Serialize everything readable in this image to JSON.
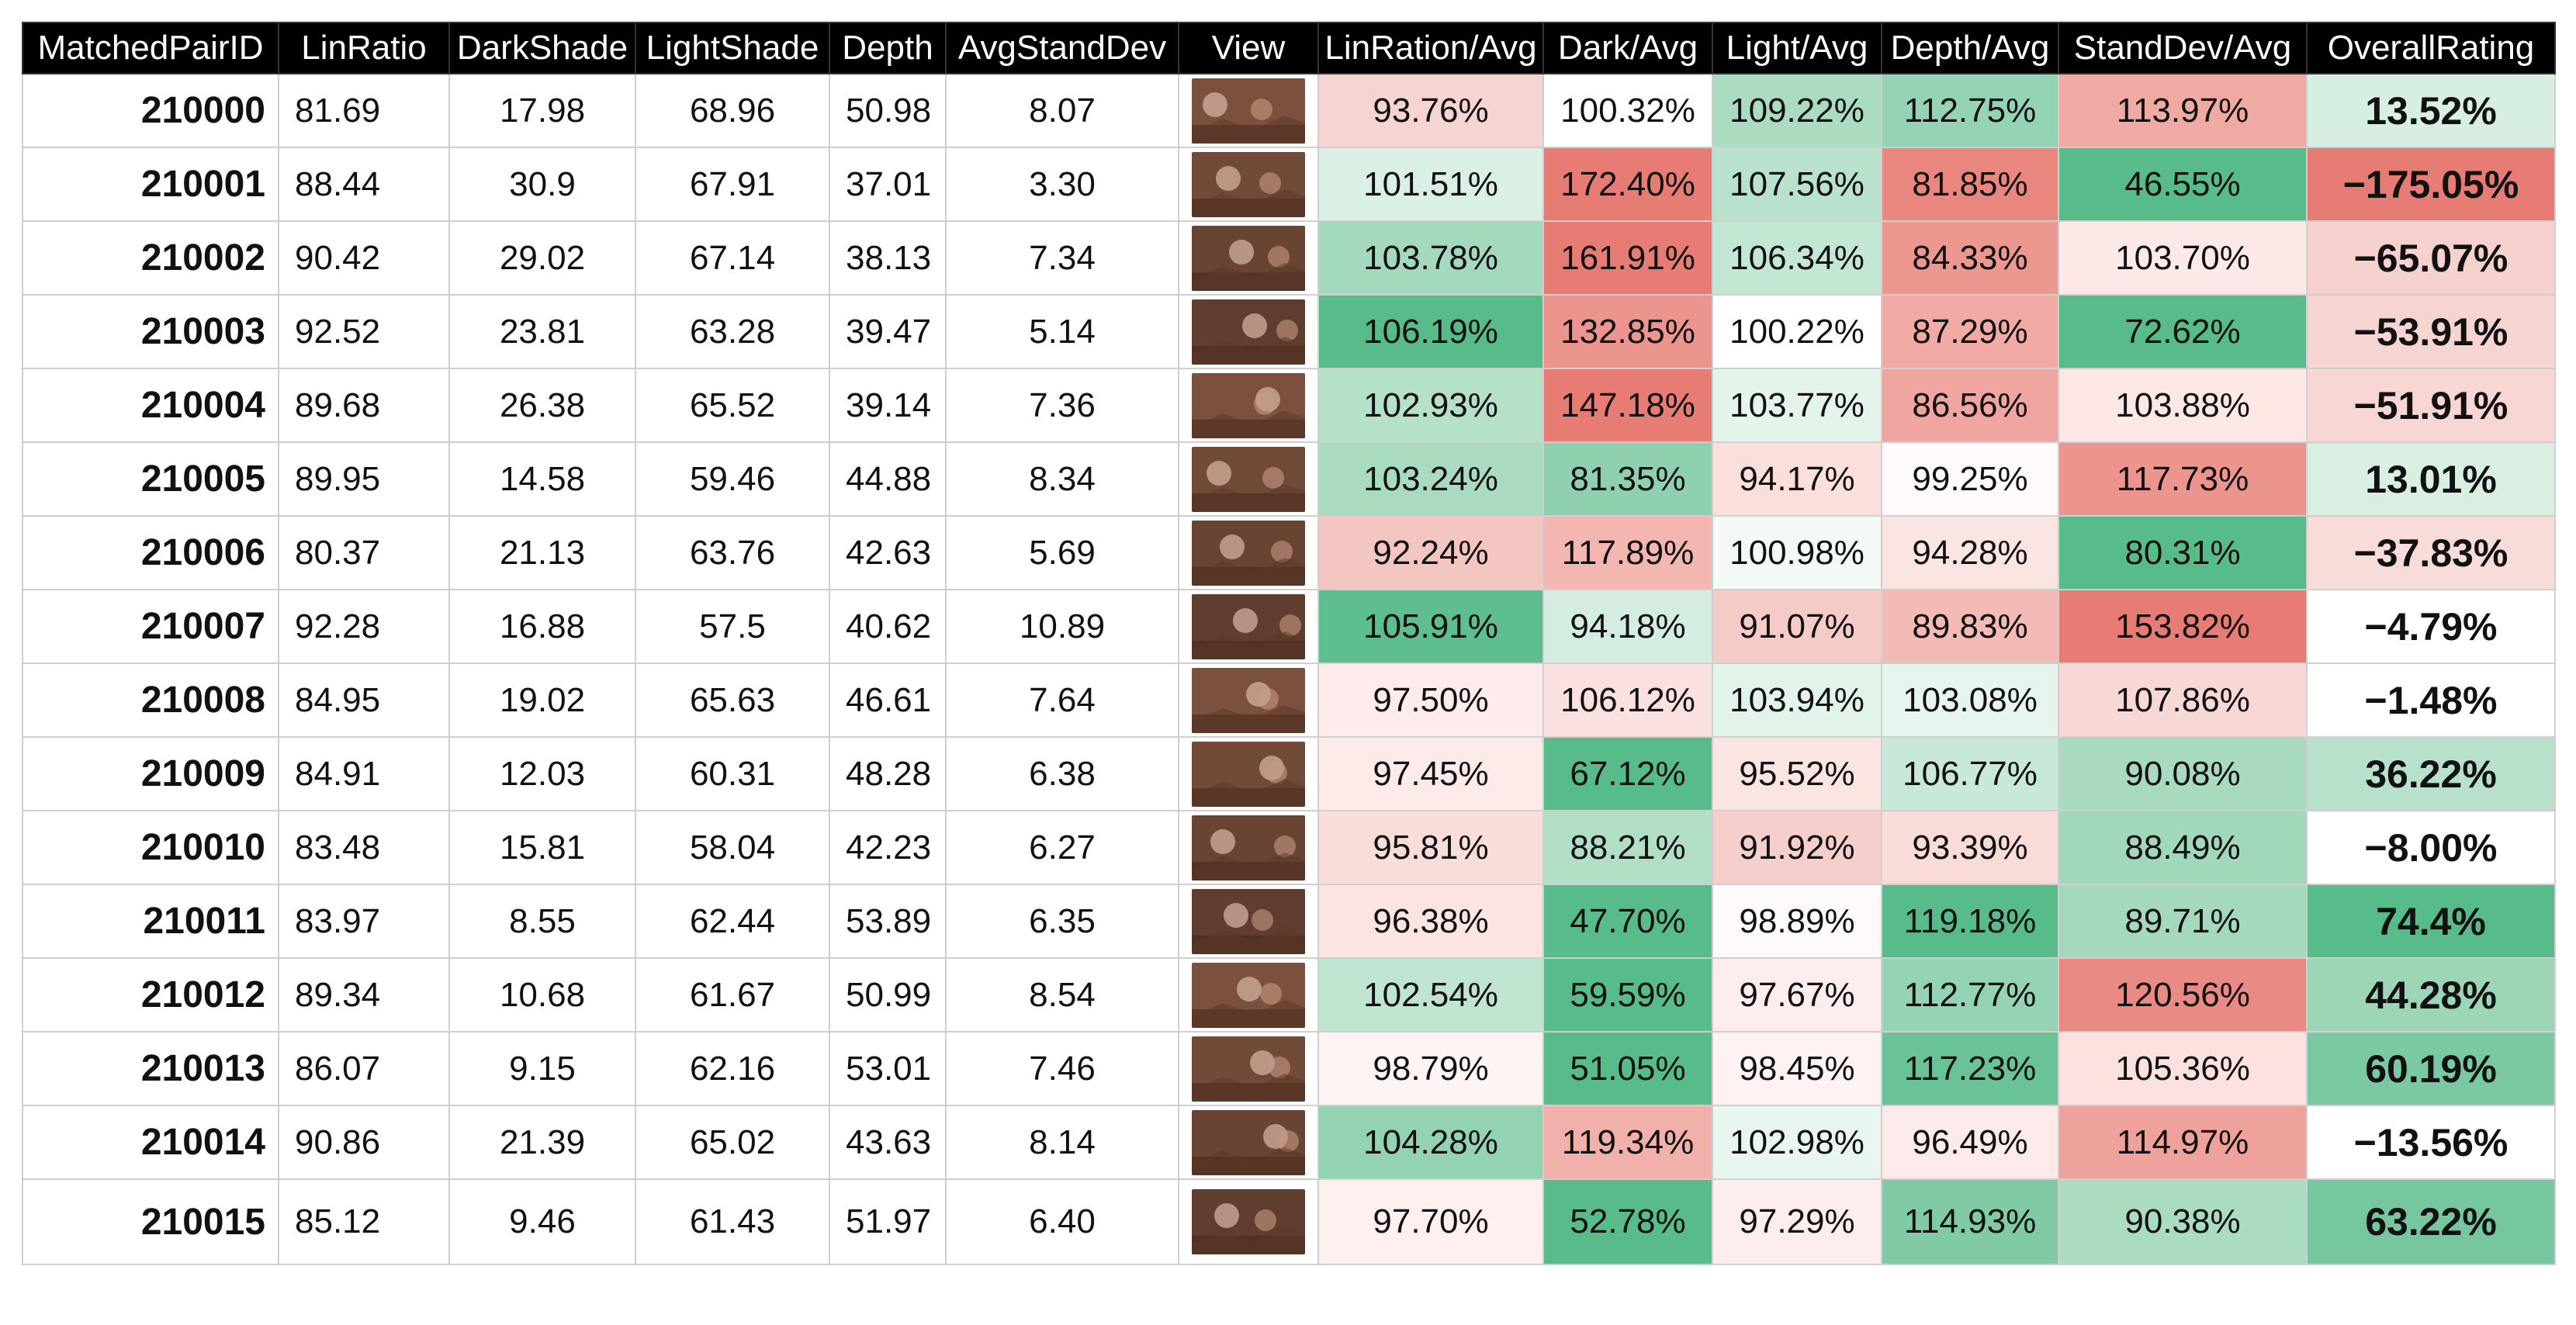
{
  "headers": [
    "MatchedPairID",
    "LinRatio",
    "DarkShade",
    "LightShade",
    "Depth",
    "AvgStandDev",
    "View",
    "LinRation/Avg",
    "Dark/Avg",
    "Light/Avg",
    "Depth/Avg",
    "StandDev/Avg",
    "OverallRating"
  ],
  "colors": {
    "header_bg": "#000000",
    "header_text": "#ffffff",
    "scale_low_red": "#e67c73",
    "scale_mid_white": "#ffffff",
    "scale_high_green": "#57bb8a",
    "thumbnail_tone": "#8a5a44"
  },
  "rows": [
    {
      "id": "210000",
      "lin": "81.69",
      "dark": "17.98",
      "light": "68.96",
      "depth": "50.98",
      "sd": "8.07",
      "view_icon": "sepia-photo-thumbnail",
      "lin_avg": "93.76%",
      "dark_avg": "100.32%",
      "light_avg": "109.22%",
      "depth_avg": "112.75%",
      "sd_avg": "113.97%",
      "rating": "13.52%",
      "fills": {
        "lin_avg": "#f6d4d1",
        "dark_avg": "#ffffff",
        "light_avg": "#aadcc1",
        "depth_avg": "#94d3b4",
        "sd_avg": "#f0aaa4",
        "rating": "#d6efe1"
      }
    },
    {
      "id": "210001",
      "lin": "88.44",
      "dark": "30.9",
      "light": "67.91",
      "depth": "37.01",
      "sd": "3.30",
      "view_icon": "sepia-photo-thumbnail",
      "lin_avg": "101.51%",
      "dark_avg": "172.40%",
      "light_avg": "107.56%",
      "depth_avg": "81.85%",
      "sd_avg": "46.55%",
      "rating": "−175.05%",
      "fills": {
        "lin_avg": "#dbf0e4",
        "dark_avg": "#e67c73",
        "light_avg": "#b9e2cc",
        "depth_avg": "#e9877f",
        "sd_avg": "#57bb8a",
        "rating": "#e67c73"
      }
    },
    {
      "id": "210002",
      "lin": "90.42",
      "dark": "29.02",
      "light": "67.14",
      "depth": "38.13",
      "sd": "7.34",
      "view_icon": "sepia-photo-thumbnail",
      "lin_avg": "103.78%",
      "dark_avg": "161.91%",
      "light_avg": "106.34%",
      "depth_avg": "84.33%",
      "sd_avg": "103.70%",
      "rating": "−65.07%",
      "fills": {
        "lin_avg": "#a4d9bd",
        "dark_avg": "#e67c73",
        "light_avg": "#c4e7d4",
        "depth_avg": "#ec978f",
        "sd_avg": "#fde9e8",
        "rating": "#f6d2cf"
      }
    },
    {
      "id": "210003",
      "lin": "92.52",
      "dark": "23.81",
      "light": "63.28",
      "depth": "39.47",
      "sd": "5.14",
      "view_icon": "sepia-photo-thumbnail",
      "lin_avg": "106.19%",
      "dark_avg": "132.85%",
      "light_avg": "100.22%",
      "depth_avg": "87.29%",
      "sd_avg": "72.62%",
      "rating": "−53.91%",
      "fills": {
        "lin_avg": "#57bb8a",
        "dark_avg": "#ec958e",
        "light_avg": "#ffffff",
        "depth_avg": "#f1aaa4",
        "sd_avg": "#57bb8a",
        "rating": "#f6d4d1"
      }
    },
    {
      "id": "210004",
      "lin": "89.68",
      "dark": "26.38",
      "light": "65.52",
      "depth": "39.14",
      "sd": "7.36",
      "view_icon": "sepia-photo-thumbnail",
      "lin_avg": "102.93%",
      "dark_avg": "147.18%",
      "light_avg": "103.77%",
      "depth_avg": "86.56%",
      "sd_avg": "103.88%",
      "rating": "−51.91%",
      "fills": {
        "lin_avg": "#b6e1c9",
        "dark_avg": "#e67c73",
        "light_avg": "#e4f4eb",
        "depth_avg": "#f0a5a0",
        "sd_avg": "#fde8e6",
        "rating": "#f7d6d4"
      }
    },
    {
      "id": "210005",
      "lin": "89.95",
      "dark": "14.58",
      "light": "59.46",
      "depth": "44.88",
      "sd": "8.34",
      "view_icon": "sepia-photo-thumbnail",
      "lin_avg": "103.24%",
      "dark_avg": "81.35%",
      "light_avg": "94.17%",
      "depth_avg": "99.25%",
      "sd_avg": "117.73%",
      "rating": "13.01%",
      "fills": {
        "lin_avg": "#a9dbc0",
        "dark_avg": "#8fd0b0",
        "light_avg": "#fadfdd",
        "depth_avg": "#fffafa",
        "sd_avg": "#ec958e",
        "rating": "#d8efe2"
      }
    },
    {
      "id": "210006",
      "lin": "80.37",
      "dark": "21.13",
      "light": "63.76",
      "depth": "42.63",
      "sd": "5.69",
      "view_icon": "sepia-photo-thumbnail",
      "lin_avg": "92.24%",
      "dark_avg": "117.89%",
      "light_avg": "100.98%",
      "depth_avg": "94.28%",
      "sd_avg": "80.31%",
      "rating": "−37.83%",
      "fills": {
        "lin_avg": "#f4c6c2",
        "dark_avg": "#f3b6b1",
        "light_avg": "#f3faf6",
        "depth_avg": "#fbe5e3",
        "sd_avg": "#57bb8a",
        "rating": "#f8dcd9"
      }
    },
    {
      "id": "210007",
      "lin": "92.28",
      "dark": "16.88",
      "light": "57.5",
      "depth": "40.62",
      "sd": "10.89",
      "view_icon": "sepia-photo-thumbnail",
      "lin_avg": "105.91%",
      "dark_avg": "94.18%",
      "light_avg": "91.07%",
      "depth_avg": "89.83%",
      "sd_avg": "153.82%",
      "rating": "−4.79%",
      "fills": {
        "lin_avg": "#5fbe8f",
        "dark_avg": "#d3ede0",
        "light_avg": "#f5cbc8",
        "depth_avg": "#f3bab6",
        "sd_avg": "#e67c73",
        "rating": "#ffffff"
      }
    },
    {
      "id": "210008",
      "lin": "84.95",
      "dark": "19.02",
      "light": "65.63",
      "depth": "46.61",
      "sd": "7.64",
      "view_icon": "sepia-photo-thumbnail",
      "lin_avg": "97.50%",
      "dark_avg": "106.12%",
      "light_avg": "103.94%",
      "depth_avg": "103.08%",
      "sd_avg": "107.86%",
      "rating": "−1.48%",
      "fills": {
        "lin_avg": "#fdeceb",
        "dark_avg": "#fae0de",
        "light_avg": "#e2f3ea",
        "depth_avg": "#e6f5ed",
        "sd_avg": "#f8d8d5",
        "rating": "#ffffff"
      }
    },
    {
      "id": "210009",
      "lin": "84.91",
      "dark": "12.03",
      "light": "60.31",
      "depth": "48.28",
      "sd": "6.38",
      "view_icon": "sepia-photo-thumbnail",
      "lin_avg": "97.45%",
      "dark_avg": "67.12%",
      "light_avg": "95.52%",
      "depth_avg": "106.77%",
      "sd_avg": "90.08%",
      "rating": "36.22%",
      "fills": {
        "lin_avg": "#fdebea",
        "dark_avg": "#57bb8a",
        "light_avg": "#fbe5e3",
        "depth_avg": "#c8e9d7",
        "sd_avg": "#a7dabf",
        "rating": "#b7e1ca"
      }
    },
    {
      "id": "210010",
      "lin": "83.48",
      "dark": "15.81",
      "light": "58.04",
      "depth": "42.23",
      "sd": "6.27",
      "view_icon": "sepia-photo-thumbnail",
      "lin_avg": "95.81%",
      "dark_avg": "88.21%",
      "light_avg": "91.92%",
      "depth_avg": "93.39%",
      "sd_avg": "88.49%",
      "rating": "−8.00%",
      "fills": {
        "lin_avg": "#f9dddb",
        "dark_avg": "#b1dfc6",
        "light_avg": "#f6cfcc",
        "depth_avg": "#f9dcd9",
        "sd_avg": "#a1d8bb",
        "rating": "#ffffff"
      }
    },
    {
      "id": "210011",
      "lin": "83.97",
      "dark": "8.55",
      "light": "62.44",
      "depth": "53.89",
      "sd": "6.35",
      "view_icon": "sepia-photo-thumbnail",
      "lin_avg": "96.38%",
      "dark_avg": "47.70%",
      "light_avg": "98.89%",
      "depth_avg": "119.18%",
      "sd_avg": "89.71%",
      "rating": "74.4%",
      "fills": {
        "lin_avg": "#fbe4e2",
        "dark_avg": "#57bb8a",
        "light_avg": "#fffafa",
        "depth_avg": "#57bb8a",
        "sd_avg": "#a5d9bd",
        "rating": "#57bb8a"
      }
    },
    {
      "id": "210012",
      "lin": "89.34",
      "dark": "10.68",
      "light": "61.67",
      "depth": "50.99",
      "sd": "8.54",
      "view_icon": "sepia-photo-thumbnail",
      "lin_avg": "102.54%",
      "dark_avg": "59.59%",
      "light_avg": "97.67%",
      "depth_avg": "112.77%",
      "sd_avg": "120.56%",
      "rating": "44.28%",
      "fills": {
        "lin_avg": "#bfe4d0",
        "dark_avg": "#57bb8a",
        "light_avg": "#fdeeed",
        "depth_avg": "#94d3b4",
        "sd_avg": "#e98b84",
        "rating": "#9cd6b6"
      }
    },
    {
      "id": "210013",
      "lin": "86.07",
      "dark": "9.15",
      "light": "62.16",
      "depth": "53.01",
      "sd": "7.46",
      "view_icon": "sepia-photo-thumbnail",
      "lin_avg": "98.79%",
      "dark_avg": "51.05%",
      "light_avg": "98.45%",
      "depth_avg": "117.23%",
      "sd_avg": "105.36%",
      "rating": "60.19%",
      "fills": {
        "lin_avg": "#fef4f3",
        "dark_avg": "#57bb8a",
        "light_avg": "#fef3f2",
        "depth_avg": "#6ac297",
        "sd_avg": "#fbe2e0",
        "rating": "#7ac9a3"
      }
    },
    {
      "id": "210014",
      "lin": "90.86",
      "dark": "21.39",
      "light": "65.02",
      "depth": "43.63",
      "sd": "8.14",
      "view_icon": "sepia-photo-thumbnail",
      "lin_avg": "104.28%",
      "dark_avg": "119.34%",
      "light_avg": "102.98%",
      "depth_avg": "96.49%",
      "sd_avg": "114.97%",
      "rating": "−13.56%",
      "fills": {
        "lin_avg": "#93d2b3",
        "dark_avg": "#f2b0ab",
        "light_avg": "#e9f6ef",
        "depth_avg": "#fcebea",
        "sd_avg": "#efa29c",
        "rating": "#ffffff"
      }
    },
    {
      "id": "210015",
      "lin": "85.12",
      "dark": "9.46",
      "light": "61.43",
      "depth": "51.97",
      "sd": "6.40",
      "view_icon": "sepia-photo-thumbnail",
      "lin_avg": "97.70%",
      "dark_avg": "52.78%",
      "light_avg": "97.29%",
      "depth_avg": "114.93%",
      "sd_avg": "90.38%",
      "rating": "63.22%",
      "fills": {
        "lin_avg": "#fdf0ef",
        "dark_avg": "#57bb8a",
        "light_avg": "#fdedec",
        "depth_avg": "#80cba6",
        "sd_avg": "#aadcc1",
        "rating": "#76c7a0"
      }
    }
  ]
}
